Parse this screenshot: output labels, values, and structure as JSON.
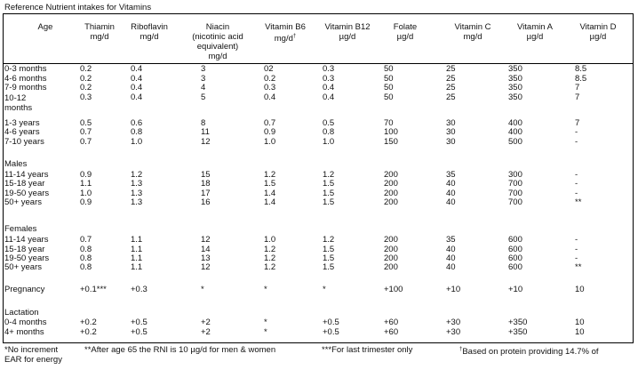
{
  "title": "Reference Nutrient intakes for Vitamins",
  "headers": {
    "age": "Age",
    "thiamin": [
      "Thiamin",
      "mg/d"
    ],
    "riboflavin": [
      "Riboflavin",
      "mg/d"
    ],
    "niacin": [
      "Niacin",
      "(nicotinic acid",
      "equivalent)",
      "mg/d"
    ],
    "b6": [
      "Vitamin B6",
      "mg/d"
    ],
    "b6_mark": "†",
    "b12": [
      "Vitamin B12",
      "µg/d"
    ],
    "folate": [
      "Folate",
      "µg/d"
    ],
    "vitc": [
      "Vitamin C",
      "mg/d"
    ],
    "vita": [
      "Vitamin A",
      "µg/d"
    ],
    "vitd": [
      "Vitamin D",
      "µg/d"
    ]
  },
  "sections": [
    {
      "title": "",
      "rows": [
        [
          "0-3 months",
          "0.2",
          "0.4",
          "3",
          "02",
          "0.3",
          "50",
          "25",
          "350",
          "8.5"
        ],
        [
          "4-6 months",
          "0.2",
          "0.4",
          "3",
          "0.2",
          "0.3",
          "50",
          "25",
          "350",
          "8.5"
        ],
        [
          "7-9 months",
          "0.2",
          "0.4",
          "4",
          "0.3",
          "0.4",
          "50",
          "25",
          "350",
          "7"
        ],
        [
          "10-12 months",
          "0.3",
          "0.4",
          "5",
          "0.4",
          "0.4",
          "50",
          "25",
          "350",
          "7"
        ],
        [
          "1-3 years",
          "0.5",
          "0.6",
          "8",
          "0.7",
          "0.5",
          "70",
          "30",
          "400",
          "7"
        ],
        [
          "4-6 years",
          "0.7",
          "0.8",
          "11",
          "0.9",
          "0.8",
          "100",
          "30",
          "400",
          "-"
        ],
        [
          "7-10 years",
          "0.7",
          "1.0",
          "12",
          "1.0",
          "1.0",
          "150",
          "30",
          "500",
          "-"
        ]
      ]
    },
    {
      "title": "Males",
      "rows": [
        [
          "11-14 years",
          "0.9",
          "1.2",
          "15",
          "1.2",
          "1.2",
          "200",
          "35",
          "300",
          "-"
        ],
        [
          "15-18 year",
          "1.1",
          "1.3",
          "18",
          "1.5",
          "1.5",
          "200",
          "40",
          "700",
          "-"
        ],
        [
          "19-50 years",
          "1.0",
          "1.3",
          "17",
          "1.4",
          "1.5",
          "200",
          "40",
          "700",
          "-"
        ],
        [
          "50+ years",
          "0.9",
          "1.3",
          "16",
          "1.4",
          "1.5",
          "200",
          "40",
          "700",
          "**"
        ]
      ]
    },
    {
      "title": "Females",
      "rows": [
        [
          "11-14 years",
          "0.7",
          "1.1",
          "12",
          "1.0",
          "1.2",
          "200",
          "35",
          "600",
          "-"
        ],
        [
          "15-18 year",
          "0.8",
          "1.1",
          "14",
          "1.2",
          "1.5",
          "200",
          "40",
          "600",
          "-"
        ],
        [
          "19-50 years",
          "0.8",
          "1.1",
          "13",
          "1.2",
          "1.5",
          "200",
          "40",
          "600",
          "-"
        ],
        [
          "50+ years",
          "0.8",
          "1.1",
          "12",
          "1.2",
          "1.5",
          "200",
          "40",
          "600",
          "**"
        ]
      ]
    },
    {
      "title": "",
      "rows": [
        [
          "Pregnancy",
          "+0.1***",
          "+0.3",
          "*",
          "*",
          "*",
          "+100",
          "+10",
          "+10",
          "10"
        ]
      ]
    },
    {
      "title": "Lactation",
      "rows": [
        [
          "0-4 months",
          "+0.2",
          "+0.5",
          "+2",
          "*",
          "+0.5",
          "+60",
          "+30",
          "+350",
          "10"
        ],
        [
          "4+ months",
          "+0.2",
          "+0.5",
          "+2",
          "*",
          "+0.5",
          "+60",
          "+30",
          "+350",
          "10"
        ]
      ]
    }
  ],
  "footnotes": {
    "note1": "*No increment",
    "note2": "**After age 65 the RNI is 10 µg/d  for men & women",
    "note3": "***For last trimester only",
    "note4_mark": "†",
    "note4": "Based on protein providing 14.7% of",
    "note4_cont": "EAR for energy"
  }
}
